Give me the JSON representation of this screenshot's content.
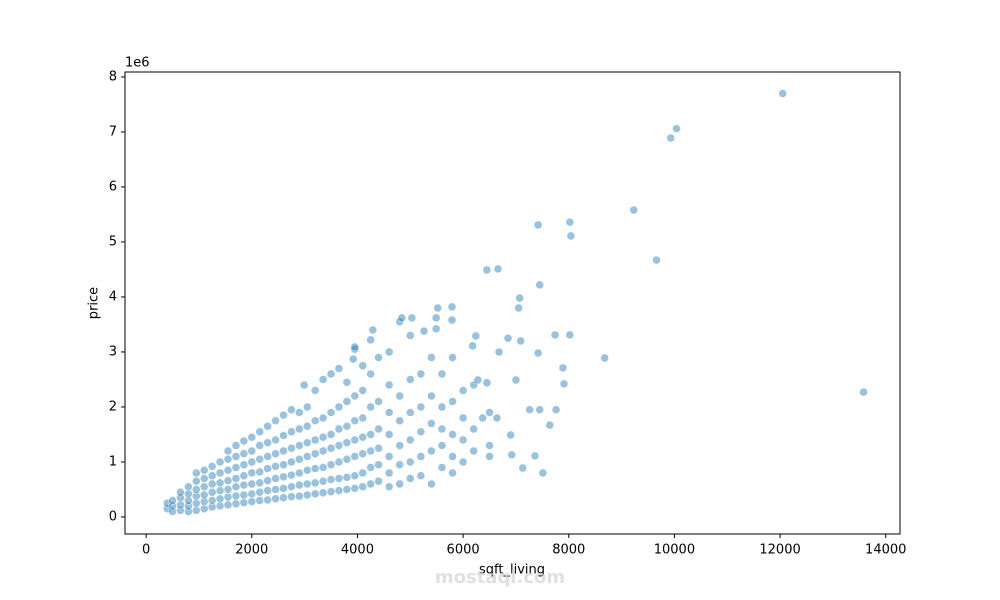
{
  "chart_data": {
    "type": "scatter",
    "x_label": "sqft_living",
    "y_label": "price",
    "y_offset_label": "1e6",
    "watermark": "mostaql.com",
    "xlim": [
      -400,
      14270
    ],
    "ylim": [
      -0.31,
      8.09
    ],
    "xticks": [
      0,
      2000,
      4000,
      6000,
      8000,
      10000,
      12000,
      14000
    ],
    "yticks": [
      0,
      1,
      2,
      3,
      4,
      5,
      6,
      7,
      8
    ],
    "color": "#1f77b4",
    "alpha": 0.45,
    "x": [
      400,
      400,
      500,
      500,
      500,
      650,
      650,
      650,
      650,
      800,
      800,
      800,
      800,
      800,
      950,
      950,
      950,
      950,
      950,
      950,
      1100,
      1100,
      1100,
      1100,
      1100,
      1100,
      1250,
      1250,
      1250,
      1250,
      1250,
      1250,
      1400,
      1400,
      1400,
      1400,
      1400,
      1400,
      1550,
      1550,
      1550,
      1550,
      1550,
      1550,
      1550,
      1700,
      1700,
      1700,
      1700,
      1700,
      1700,
      1700,
      1850,
      1850,
      1850,
      1850,
      1850,
      1850,
      1850,
      2000,
      2000,
      2000,
      2000,
      2000,
      2000,
      2000,
      2150,
      2150,
      2150,
      2150,
      2150,
      2150,
      2150,
      2300,
      2300,
      2300,
      2300,
      2300,
      2300,
      2300,
      2450,
      2450,
      2450,
      2450,
      2450,
      2450,
      2450,
      2600,
      2600,
      2600,
      2600,
      2600,
      2600,
      2600,
      2750,
      2750,
      2750,
      2750,
      2750,
      2750,
      2750,
      2900,
      2900,
      2900,
      2900,
      2900,
      2900,
      2900,
      3050,
      3050,
      3050,
      3050,
      3050,
      3050,
      3050,
      3200,
      3200,
      3200,
      3200,
      3200,
      3200,
      3200,
      3350,
      3350,
      3350,
      3350,
      3350,
      3350,
      3350,
      3500,
      3500,
      3500,
      3500,
      3500,
      3500,
      3500,
      3650,
      3650,
      3650,
      3650,
      3650,
      3650,
      3650,
      3800,
      3800,
      3800,
      3800,
      3800,
      3800,
      3800,
      3950,
      3950,
      3950,
      3950,
      3950,
      3950,
      3950,
      4100,
      4100,
      4100,
      4100,
      4100,
      4100,
      4100,
      4250,
      4250,
      4250,
      4250,
      4250,
      4250,
      4400,
      4400,
      4400,
      4400,
      4400,
      4400,
      4600,
      4600,
      4600,
      4600,
      4600,
      4600,
      4600,
      4800,
      4800,
      4800,
      4800,
      4800,
      4800,
      5000,
      5000,
      5000,
      5000,
      5000,
      5000,
      5200,
      5200,
      5200,
      5200,
      5200,
      5400,
      5400,
      5400,
      5400,
      5400,
      5600,
      5600,
      5600,
      5600,
      5600,
      5800,
      5800,
      5800,
      5800,
      5800,
      6000,
      6000,
      6000,
      6000,
      6200,
      6200,
      6200,
      6500,
      6500,
      6500,
      12050,
      10040,
      9930,
      9230,
      9660,
      8020,
      8040,
      7420,
      7450,
      6660,
      6450,
      13580,
      8680,
      8020,
      7740,
      7890,
      7910,
      7070,
      7050,
      7090,
      6850,
      6680,
      7420,
      7000,
      7260,
      7450,
      7760,
      7640,
      7510,
      7130,
      7360,
      6900,
      6920,
      6640,
      6370,
      6240,
      6180,
      6450,
      6280,
      5790,
      5790,
      5520,
      5490,
      5030,
      4840,
      5490,
      5260,
      4290,
      4250,
      3950,
      3920,
      2990
    ],
    "values": [
      0.15,
      0.25,
      0.1,
      0.2,
      0.3,
      0.12,
      0.22,
      0.35,
      0.45,
      0.1,
      0.2,
      0.3,
      0.42,
      0.55,
      0.12,
      0.25,
      0.38,
      0.5,
      0.65,
      0.8,
      0.15,
      0.28,
      0.4,
      0.55,
      0.7,
      0.85,
      0.18,
      0.3,
      0.45,
      0.6,
      0.75,
      0.92,
      0.2,
      0.33,
      0.48,
      0.62,
      0.8,
      1.0,
      0.22,
      0.36,
      0.5,
      0.66,
      0.85,
      1.05,
      1.2,
      0.24,
      0.38,
      0.55,
      0.7,
      0.9,
      1.1,
      1.3,
      0.26,
      0.4,
      0.58,
      0.75,
      0.95,
      1.15,
      1.38,
      0.28,
      0.42,
      0.6,
      0.8,
      1.0,
      1.2,
      1.45,
      0.3,
      0.45,
      0.62,
      0.82,
      1.05,
      1.3,
      1.55,
      0.31,
      0.48,
      0.66,
      0.88,
      1.1,
      1.35,
      1.65,
      0.33,
      0.5,
      0.7,
      0.92,
      1.15,
      1.4,
      1.75,
      0.35,
      0.52,
      0.73,
      0.95,
      1.2,
      1.48,
      1.85,
      0.37,
      0.55,
      0.76,
      1.0,
      1.25,
      1.55,
      1.95,
      0.38,
      0.58,
      0.8,
      1.05,
      1.3,
      1.6,
      1.9,
      0.4,
      0.6,
      0.85,
      1.1,
      1.35,
      1.65,
      2.0,
      0.42,
      0.62,
      0.88,
      1.15,
      1.4,
      1.75,
      2.3,
      0.44,
      0.65,
      0.9,
      1.2,
      1.45,
      1.8,
      2.5,
      0.46,
      0.68,
      0.95,
      1.25,
      1.5,
      1.9,
      2.6,
      0.48,
      0.7,
      1.0,
      1.3,
      1.6,
      2.0,
      2.7,
      0.5,
      0.72,
      1.05,
      1.35,
      1.65,
      2.1,
      2.45,
      0.52,
      0.75,
      1.1,
      1.4,
      1.75,
      2.2,
      3.05,
      0.55,
      0.8,
      1.15,
      1.45,
      1.8,
      2.3,
      2.75,
      0.6,
      0.9,
      1.2,
      1.5,
      2.0,
      2.6,
      0.65,
      0.95,
      1.25,
      1.6,
      2.1,
      2.9,
      0.55,
      0.8,
      1.1,
      1.5,
      1.9,
      2.4,
      3.0,
      0.6,
      0.95,
      1.3,
      1.75,
      2.2,
      3.55,
      0.7,
      1.0,
      1.4,
      1.9,
      2.5,
      3.3,
      0.75,
      1.1,
      1.55,
      2.0,
      2.6,
      0.6,
      1.2,
      1.7,
      2.2,
      2.9,
      0.9,
      1.3,
      1.6,
      2.0,
      2.6,
      0.8,
      1.1,
      1.5,
      2.1,
      2.9,
      1.0,
      1.4,
      1.8,
      2.3,
      1.2,
      1.6,
      2.4,
      1.1,
      1.3,
      1.9,
      7.7,
      7.06,
      6.89,
      5.58,
      4.67,
      5.36,
      5.11,
      5.31,
      4.22,
      4.51,
      4.49,
      2.27,
      2.89,
      3.31,
      3.31,
      2.71,
      2.42,
      3.98,
      3.8,
      3.2,
      3.25,
      3.0,
      2.98,
      2.49,
      1.95,
      1.95,
      1.95,
      1.67,
      0.8,
      0.89,
      1.11,
      1.49,
      1.13,
      1.8,
      1.8,
      3.29,
      3.11,
      2.44,
      2.49,
      3.58,
      3.82,
      3.8,
      3.62,
      3.62,
      3.62,
      3.42,
      3.38,
      3.4,
      3.22,
      3.09,
      2.87,
      2.4
    ]
  }
}
